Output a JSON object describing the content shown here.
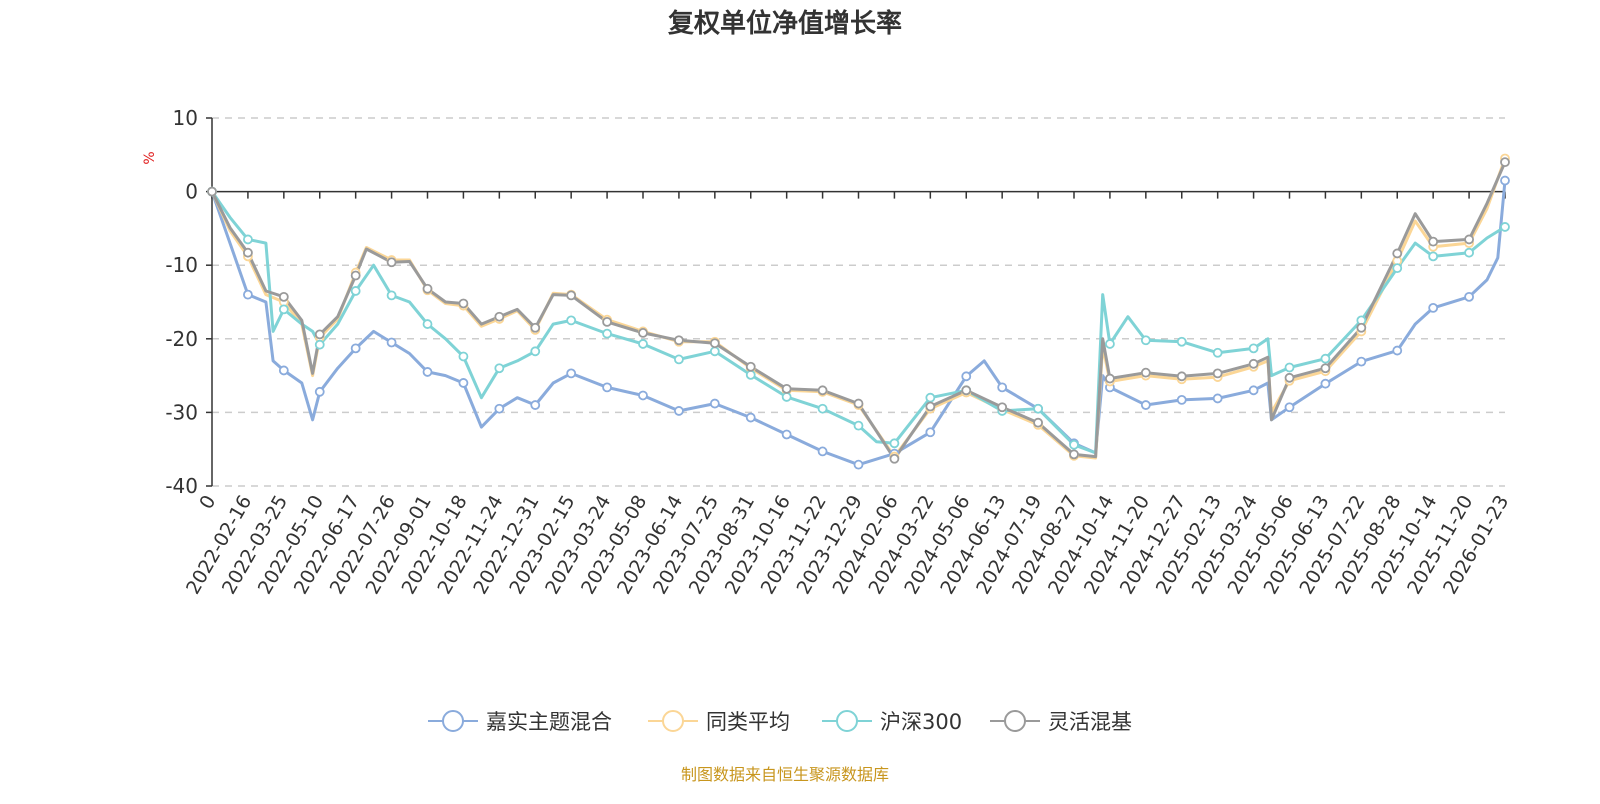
{
  "chart_data": {
    "type": "line",
    "title": "复权单位净值增长率",
    "ylabel": "%",
    "xlabel": "",
    "ylim": [
      -40,
      10
    ],
    "yticks": [
      10,
      0,
      -10,
      -20,
      -30,
      -40
    ],
    "grid": true,
    "legend_position": "bottom",
    "categories": [
      "0",
      "2022-02-16",
      "2022-03-25",
      "2022-05-10",
      "2022-06-17",
      "2022-07-26",
      "2022-09-01",
      "2022-10-18",
      "2022-11-24",
      "2022-12-31",
      "2023-02-15",
      "2023-03-24",
      "2023-05-08",
      "2023-06-14",
      "2023-07-25",
      "2023-08-31",
      "2023-10-16",
      "2023-11-22",
      "2023-12-29",
      "2024-02-06",
      "2024-03-22",
      "2024-05-06",
      "2024-06-13",
      "2024-07-19",
      "2024-08-27",
      "2024-10-14",
      "2024-11-20",
      "2024-12-27",
      "2025-02-13",
      "2025-03-24",
      "2025-05-06",
      "2025-06-13",
      "2025-07-22",
      "2025-08-28",
      "2025-10-14",
      "2025-11-20",
      "2026-01-23"
    ],
    "series": [
      {
        "name": "嘉实主题混合",
        "color": "#8aabdc",
        "points": [
          [
            0,
            0
          ],
          [
            0.5,
            -7
          ],
          [
            1,
            -14
          ],
          [
            1.5,
            -15
          ],
          [
            1.7,
            -23
          ],
          [
            2,
            -24.3
          ],
          [
            2.5,
            -26
          ],
          [
            2.8,
            -31
          ],
          [
            3,
            -27.2
          ],
          [
            3.5,
            -24
          ],
          [
            4,
            -21.3
          ],
          [
            4.5,
            -19
          ],
          [
            5,
            -20.5
          ],
          [
            5.5,
            -22
          ],
          [
            6,
            -24.5
          ],
          [
            6.5,
            -25
          ],
          [
            7,
            -26
          ],
          [
            7.5,
            -32
          ],
          [
            8,
            -29.5
          ],
          [
            8.5,
            -28
          ],
          [
            9,
            -29
          ],
          [
            9.5,
            -26
          ],
          [
            10,
            -24.7
          ],
          [
            11,
            -26.6
          ],
          [
            12,
            -27.7
          ],
          [
            13,
            -29.8
          ],
          [
            14,
            -28.8
          ],
          [
            15,
            -30.7
          ],
          [
            16,
            -33
          ],
          [
            17,
            -35.3
          ],
          [
            18,
            -37.1
          ],
          [
            19,
            -35.6
          ],
          [
            20,
            -32.7
          ],
          [
            21,
            -25.1
          ],
          [
            21.5,
            -23
          ],
          [
            22,
            -26.6
          ],
          [
            23,
            -29.5
          ],
          [
            24,
            -34.2
          ],
          [
            24.6,
            -35.5
          ],
          [
            24.8,
            -25
          ],
          [
            25,
            -26.6
          ],
          [
            26,
            -29
          ],
          [
            27,
            -28.3
          ],
          [
            28,
            -28.1
          ],
          [
            29,
            -27
          ],
          [
            29.4,
            -26
          ],
          [
            29.5,
            -31
          ],
          [
            30,
            -29.3
          ],
          [
            31,
            -26.1
          ],
          [
            32,
            -23.1
          ],
          [
            33,
            -21.6
          ],
          [
            33.5,
            -18
          ],
          [
            34,
            -15.8
          ],
          [
            35,
            -14.3
          ],
          [
            35.5,
            -12
          ],
          [
            35.8,
            -9
          ],
          [
            36,
            1.5
          ]
        ]
      },
      {
        "name": "同类平均",
        "color": "#fbd696",
        "points": [
          [
            0,
            0
          ],
          [
            0.5,
            -5.3
          ],
          [
            1,
            -8.8
          ],
          [
            1.5,
            -14
          ],
          [
            2,
            -15
          ],
          [
            2.5,
            -18
          ],
          [
            2.8,
            -25
          ],
          [
            3,
            -19.8
          ],
          [
            3.5,
            -17.3
          ],
          [
            4,
            -11
          ],
          [
            4.3,
            -7.6
          ],
          [
            5,
            -9.3
          ],
          [
            5.5,
            -9.3
          ],
          [
            6,
            -13.4
          ],
          [
            6.5,
            -15.2
          ],
          [
            7,
            -15.5
          ],
          [
            7.5,
            -18.3
          ],
          [
            8,
            -17.3
          ],
          [
            8.5,
            -16.2
          ],
          [
            9,
            -18.8
          ],
          [
            9.5,
            -13.8
          ],
          [
            10,
            -14
          ],
          [
            11,
            -17.4
          ],
          [
            12,
            -19
          ],
          [
            13,
            -20.4
          ],
          [
            14,
            -20.4
          ],
          [
            15,
            -24
          ],
          [
            16,
            -27
          ],
          [
            17,
            -27.2
          ],
          [
            18,
            -29
          ],
          [
            19,
            -36
          ],
          [
            20,
            -29.5
          ],
          [
            21,
            -27.3
          ],
          [
            22,
            -29.6
          ],
          [
            23,
            -31.7
          ],
          [
            24,
            -35.9
          ],
          [
            24.6,
            -36.2
          ],
          [
            24.8,
            -21
          ],
          [
            25,
            -25.8
          ],
          [
            26,
            -25
          ],
          [
            27,
            -25.5
          ],
          [
            28,
            -25.2
          ],
          [
            29,
            -23.8
          ],
          [
            29.4,
            -23
          ],
          [
            29.5,
            -30
          ],
          [
            30,
            -25.7
          ],
          [
            31,
            -24.4
          ],
          [
            32,
            -19
          ],
          [
            33,
            -9.4
          ],
          [
            33.5,
            -4
          ],
          [
            34,
            -7.5
          ],
          [
            35,
            -7
          ],
          [
            35.5,
            -2.3
          ],
          [
            36,
            4.5
          ]
        ]
      },
      {
        "name": "沪深300",
        "color": "#7fd3d6",
        "points": [
          [
            0,
            0
          ],
          [
            0.5,
            -3.5
          ],
          [
            1,
            -6.5
          ],
          [
            1.5,
            -7
          ],
          [
            1.7,
            -19
          ],
          [
            2,
            -16
          ],
          [
            2.5,
            -18
          ],
          [
            2.8,
            -19
          ],
          [
            3,
            -20.8
          ],
          [
            3.5,
            -18
          ],
          [
            4,
            -13.5
          ],
          [
            4.5,
            -10
          ],
          [
            5,
            -14.1
          ],
          [
            5.5,
            -15
          ],
          [
            6,
            -18
          ],
          [
            6.5,
            -20
          ],
          [
            7,
            -22.4
          ],
          [
            7.5,
            -28
          ],
          [
            8,
            -24
          ],
          [
            8.5,
            -23
          ],
          [
            9,
            -21.7
          ],
          [
            9.5,
            -18
          ],
          [
            10,
            -17.5
          ],
          [
            11,
            -19.3
          ],
          [
            12,
            -20.7
          ],
          [
            13,
            -22.8
          ],
          [
            14,
            -21.7
          ],
          [
            15,
            -24.9
          ],
          [
            16,
            -27.9
          ],
          [
            17,
            -29.5
          ],
          [
            18,
            -31.8
          ],
          [
            18.5,
            -34
          ],
          [
            19,
            -34.2
          ],
          [
            20,
            -28
          ],
          [
            21,
            -27
          ],
          [
            22,
            -29.8
          ],
          [
            23,
            -29.5
          ],
          [
            24,
            -34.4
          ],
          [
            24.6,
            -35.5
          ],
          [
            24.8,
            -14
          ],
          [
            25,
            -20.7
          ],
          [
            25.5,
            -17
          ],
          [
            26,
            -20.2
          ],
          [
            27,
            -20.4
          ],
          [
            28,
            -21.9
          ],
          [
            29,
            -21.3
          ],
          [
            29.4,
            -20
          ],
          [
            29.5,
            -25
          ],
          [
            30,
            -23.9
          ],
          [
            31,
            -22.7
          ],
          [
            32,
            -17.5
          ],
          [
            33,
            -10.4
          ],
          [
            33.5,
            -7
          ],
          [
            34,
            -8.8
          ],
          [
            35,
            -8.3
          ],
          [
            35.5,
            -6.3
          ],
          [
            36,
            -4.8
          ]
        ]
      },
      {
        "name": "灵活混基",
        "color": "#9a9a9a",
        "points": [
          [
            0,
            0
          ],
          [
            0.5,
            -4.9
          ],
          [
            1,
            -8.3
          ],
          [
            1.5,
            -13.5
          ],
          [
            2,
            -14.3
          ],
          [
            2.5,
            -17.5
          ],
          [
            2.8,
            -24.7
          ],
          [
            3,
            -19.4
          ],
          [
            3.5,
            -17
          ],
          [
            4,
            -11.4
          ],
          [
            4.3,
            -7.8
          ],
          [
            5,
            -9.6
          ],
          [
            5.5,
            -9.5
          ],
          [
            6,
            -13.2
          ],
          [
            6.5,
            -15
          ],
          [
            7,
            -15.2
          ],
          [
            7.5,
            -18
          ],
          [
            8,
            -17
          ],
          [
            8.5,
            -16
          ],
          [
            9,
            -18.5
          ],
          [
            9.5,
            -14
          ],
          [
            10,
            -14.1
          ],
          [
            11,
            -17.7
          ],
          [
            12,
            -19.2
          ],
          [
            13,
            -20.2
          ],
          [
            14,
            -20.6
          ],
          [
            15,
            -23.8
          ],
          [
            16,
            -26.8
          ],
          [
            17,
            -27
          ],
          [
            18,
            -28.8
          ],
          [
            19,
            -36.3
          ],
          [
            20,
            -29.2
          ],
          [
            21,
            -27
          ],
          [
            22,
            -29.3
          ],
          [
            23,
            -31.4
          ],
          [
            24,
            -35.7
          ],
          [
            24.6,
            -36
          ],
          [
            24.8,
            -20
          ],
          [
            25,
            -25.4
          ],
          [
            26,
            -24.6
          ],
          [
            27,
            -25.1
          ],
          [
            28,
            -24.7
          ],
          [
            29,
            -23.4
          ],
          [
            29.4,
            -22.5
          ],
          [
            29.5,
            -31
          ],
          [
            30,
            -25.3
          ],
          [
            31,
            -24
          ],
          [
            32,
            -18.5
          ],
          [
            33,
            -8.4
          ],
          [
            33.5,
            -3
          ],
          [
            34,
            -6.8
          ],
          [
            35,
            -6.5
          ],
          [
            35.5,
            -1.6
          ],
          [
            36,
            4
          ]
        ]
      }
    ]
  },
  "footer": "制图数据来自恒生聚源数据库"
}
